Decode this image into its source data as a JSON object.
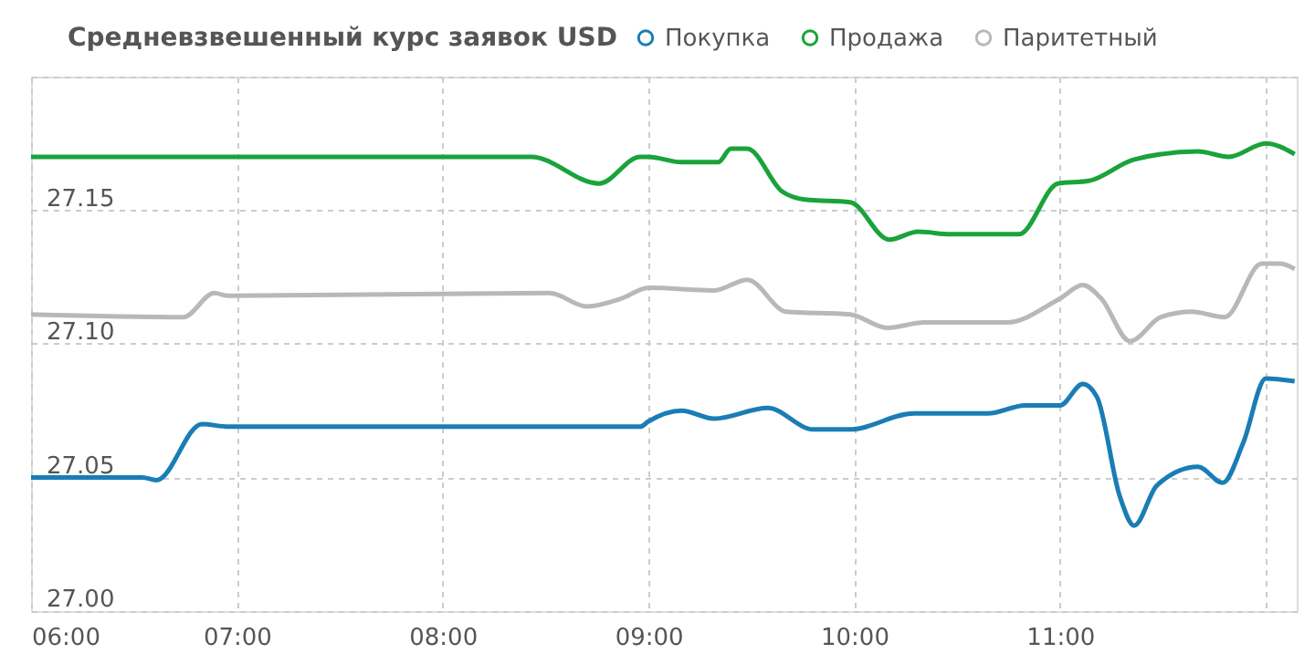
{
  "chart_data": {
    "type": "line",
    "title": "Средневзвешенный курс заявок USD",
    "legend": "top",
    "grid": true,
    "line_style": "solid",
    "marker": "none",
    "xlim": [
      6,
      12.15
    ],
    "xticks": [
      {
        "value": 6,
        "label": "06:00"
      },
      {
        "value": 7,
        "label": "07:00"
      },
      {
        "value": 8,
        "label": "08:00"
      },
      {
        "value": 9,
        "label": "09:00"
      },
      {
        "value": 10,
        "label": "10:00"
      },
      {
        "value": 11,
        "label": "11:00"
      },
      {
        "value": 12,
        "label": null
      }
    ],
    "ylim": [
      27.0,
      27.2
    ],
    "yticks": [
      {
        "value": 27.0,
        "label": "27.00"
      },
      {
        "value": 27.05,
        "label": "27.05"
      },
      {
        "value": 27.1,
        "label": "27.10"
      },
      {
        "value": 27.15,
        "label": "27.15"
      },
      {
        "value": 27.2,
        "label": null
      }
    ],
    "series": [
      {
        "name": "Покупка",
        "color": "#1a7db5",
        "x": [
          6,
          6.54,
          6.61,
          6.83,
          6.96,
          8.96,
          9.0,
          9.16,
          9.32,
          9.58,
          9.8,
          9.98,
          10.29,
          10.65,
          10.83,
          11.0,
          11.11,
          11.18,
          11.29,
          11.36,
          11.47,
          11.67,
          11.79,
          11.89,
          12.0,
          12.14
        ],
        "values": [
          27.05,
          27.05,
          27.049,
          27.07,
          27.069,
          27.069,
          27.071,
          27.075,
          27.072,
          27.076,
          27.068,
          27.068,
          27.074,
          27.074,
          27.077,
          27.077,
          27.085,
          27.08,
          27.043,
          27.032,
          27.047,
          27.054,
          27.048,
          27.063,
          27.087,
          27.086
        ]
      },
      {
        "name": "Продажа",
        "color": "#1aa33a",
        "x": [
          6,
          8.43,
          8.76,
          8.96,
          9.0,
          9.16,
          9.34,
          9.4,
          9.48,
          9.65,
          9.76,
          9.98,
          10.17,
          10.31,
          10.47,
          10.8,
          10.99,
          11.14,
          11.36,
          11.67,
          11.82,
          12.0,
          12.14
        ],
        "values": [
          27.17,
          27.17,
          27.16,
          27.17,
          27.17,
          27.168,
          27.168,
          27.173,
          27.173,
          27.157,
          27.154,
          27.153,
          27.139,
          27.142,
          27.141,
          27.141,
          27.16,
          27.161,
          27.169,
          27.172,
          27.17,
          27.175,
          27.171
        ]
      },
      {
        "name": "Паритетный",
        "color": "#b8b8b8",
        "x": [
          6,
          6.74,
          6.89,
          6.96,
          8.52,
          8.7,
          8.87,
          9.0,
          9.32,
          9.48,
          9.67,
          9.98,
          10.16,
          10.34,
          10.74,
          11.0,
          11.11,
          11.2,
          11.34,
          11.49,
          11.64,
          11.8,
          11.98,
          12.07,
          12.14
        ],
        "values": [
          27.111,
          27.11,
          27.119,
          27.118,
          27.119,
          27.114,
          27.117,
          27.121,
          27.12,
          27.124,
          27.112,
          27.111,
          27.106,
          27.108,
          27.108,
          27.117,
          27.122,
          27.117,
          27.101,
          27.11,
          27.112,
          27.11,
          27.13,
          27.13,
          27.128
        ]
      }
    ]
  }
}
